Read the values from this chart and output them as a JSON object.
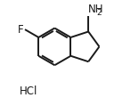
{
  "background_color": "#ffffff",
  "bond_color": "#1a1a1a",
  "text_color": "#1a1a1a",
  "line_width": 1.4,
  "font_size": 8.5,
  "font_size_sub": 6.5,
  "font_size_hcl": 8.5,
  "F_label": "F",
  "NH2_label": "NH",
  "NH2_sub": "2",
  "HCl_label": "HCl",
  "figsize": [
    1.56,
    1.19
  ],
  "dpi": 100
}
